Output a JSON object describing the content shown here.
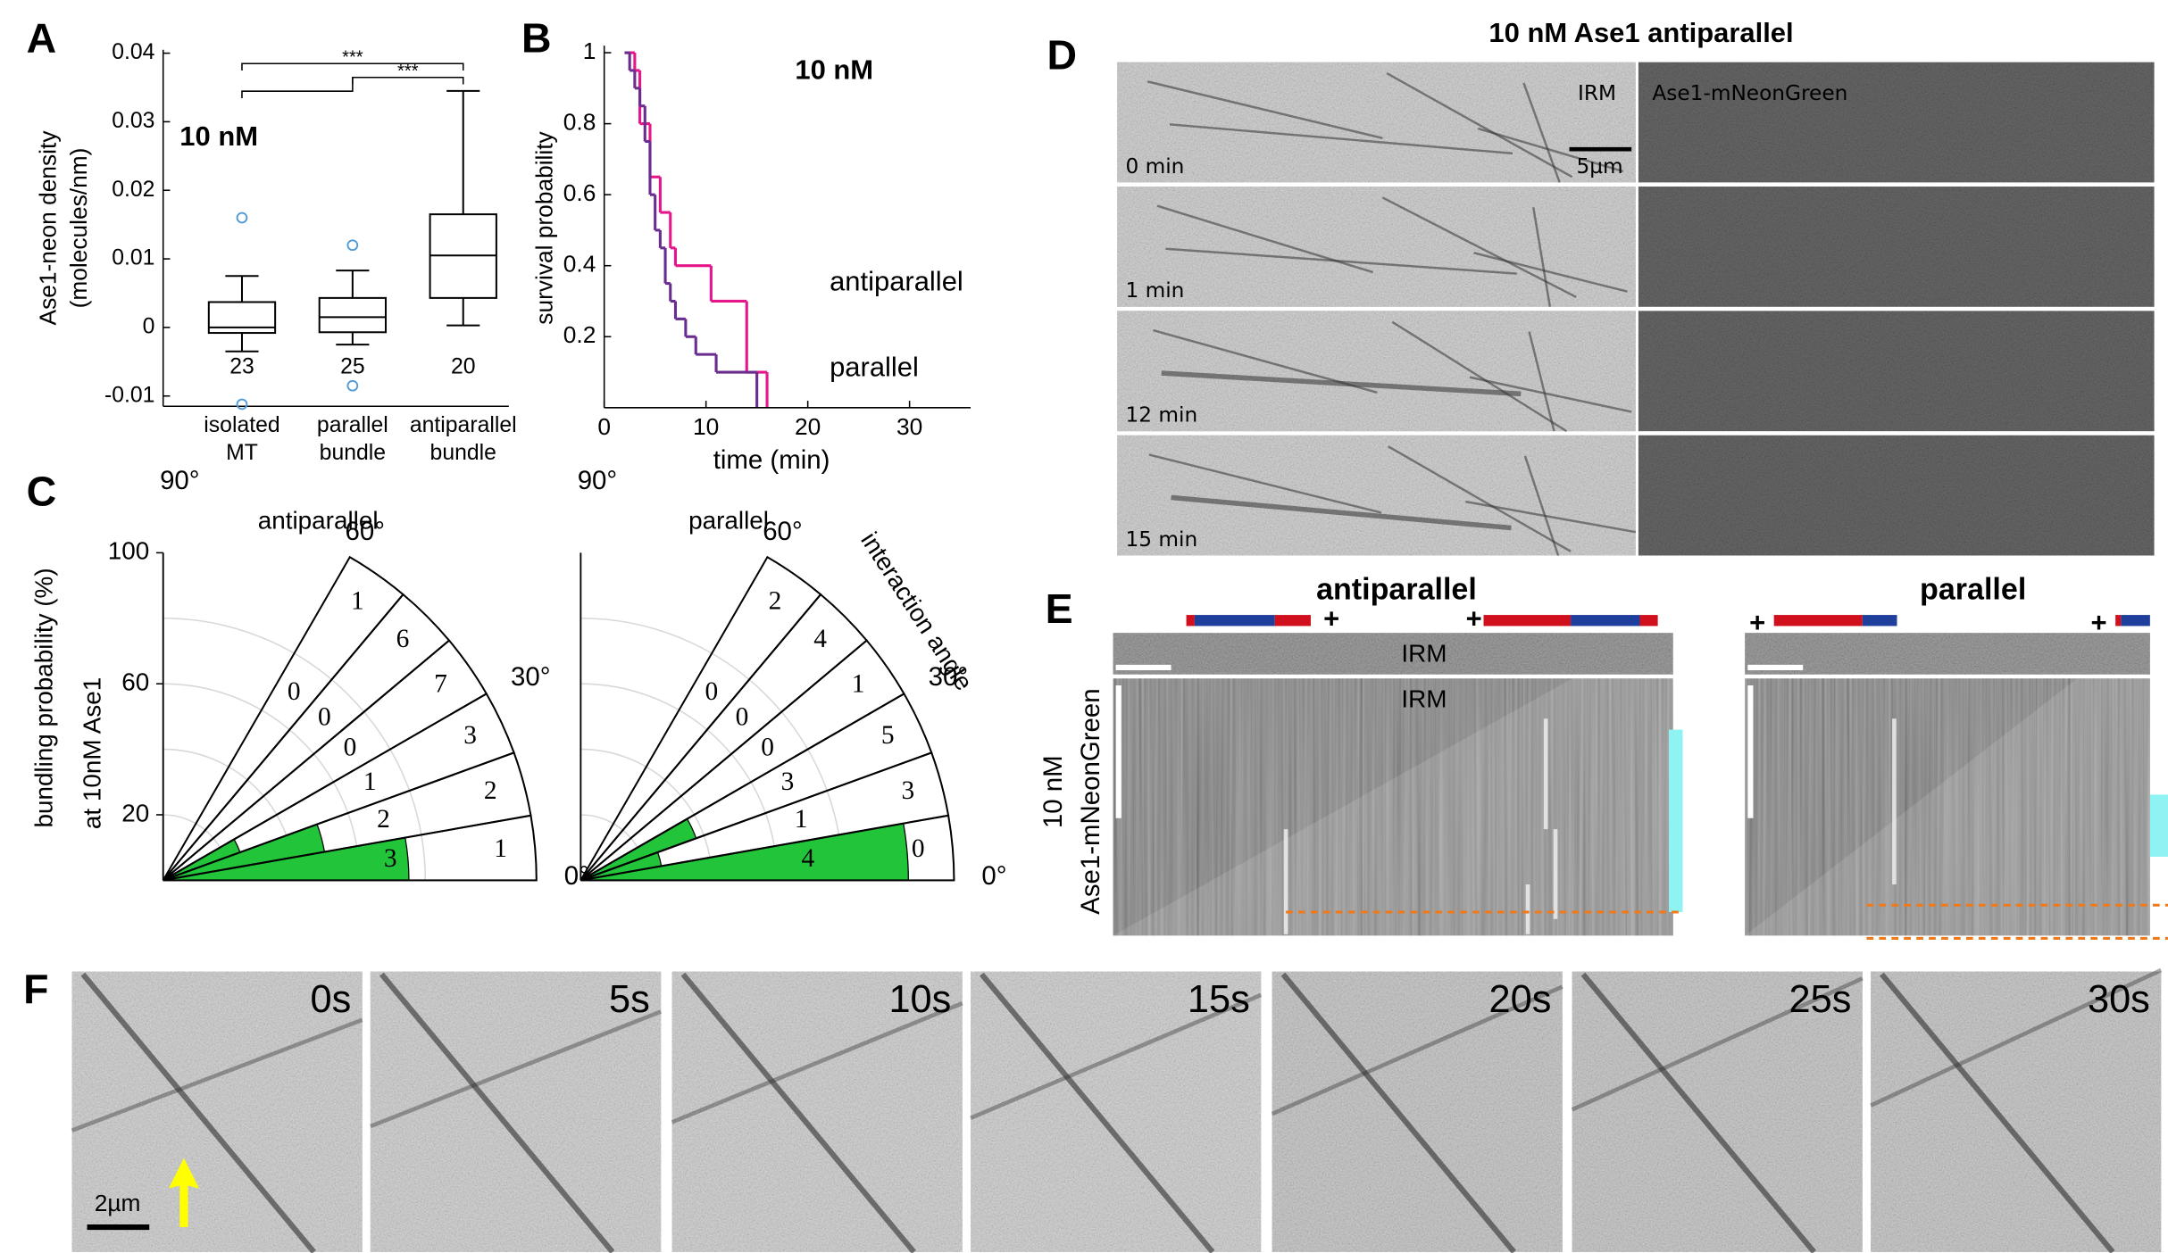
{
  "panel_labels": [
    "A",
    "B",
    "C",
    "D",
    "E",
    "F"
  ],
  "chart_data": [
    {
      "type": "box",
      "annotation": "10 nM",
      "y_label": [
        "Ase1-neon density",
        "(molecules/nm)"
      ],
      "categories": [
        [
          "isolated",
          "MT"
        ],
        [
          "parallel",
          "bundle"
        ],
        [
          "antiparallel",
          "bundle"
        ]
      ],
      "boxes": [
        {
          "min": -0.0035,
          "q1": -0.0008,
          "median": 0,
          "q3": 0.0037,
          "max": 0.0075,
          "outliers": [
            0.016,
            -0.0112
          ]
        },
        {
          "min": -0.0025,
          "q1": -0.0007,
          "median": 0.0015,
          "q3": 0.0043,
          "max": 0.0083,
          "outliers": [
            0.012,
            -0.0085
          ]
        },
        {
          "min": 0.0003,
          "q1": 0.0043,
          "median": 0.0105,
          "q3": 0.0165,
          "max": 0.0345,
          "outliers": []
        }
      ],
      "n_labels": [
        23,
        25,
        20
      ],
      "significance": [
        {
          "from": 0,
          "to": 2,
          "label": "***"
        },
        {
          "from": 1,
          "to": 2,
          "label": "***"
        }
      ],
      "ylim": [
        -0.0115,
        0.0405
      ],
      "yticks": [
        -0.01,
        0,
        0.01,
        0.02,
        0.03,
        0.04
      ]
    },
    {
      "type": "step",
      "annotation": "10 nM",
      "x_label": "time (min)",
      "y_label": "survival probability",
      "series": [
        {
          "name": "antiparallel",
          "color": "#e5158a",
          "x": [
            2,
            3,
            3.5,
            4.5,
            5.5,
            6.5,
            7,
            10.5,
            14,
            16
          ],
          "values": [
            1,
            0.95,
            0.8,
            0.65,
            0.55,
            0.45,
            0.4,
            0.3,
            0.1,
            0
          ]
        },
        {
          "name": "parallel",
          "color": "#6a2d8f",
          "x": [
            2,
            2.5,
            3,
            3.5,
            4,
            4.5,
            5,
            5.5,
            6,
            6.5,
            7,
            8,
            9,
            11,
            15
          ],
          "values": [
            1,
            0.95,
            0.9,
            0.85,
            0.75,
            0.6,
            0.5,
            0.45,
            0.35,
            0.3,
            0.25,
            0.2,
            0.15,
            0.1,
            0
          ]
        }
      ],
      "xlim": [
        0,
        36
      ],
      "xticks": [
        0,
        10,
        20,
        30
      ],
      "ylim": [
        0,
        1.02
      ],
      "yticks": [
        0.2,
        0.4,
        0.6,
        0.8,
        1
      ]
    },
    {
      "type": "polar",
      "title": "antiparallel",
      "y_label": [
        "bundling probability (%)",
        "at 10nM Ase1"
      ],
      "color": "#22c43a",
      "angles": [
        0,
        10,
        20,
        30,
        40,
        50,
        60
      ],
      "values": [
        75,
        50,
        25,
        0,
        0,
        0
      ],
      "bundled": [
        3,
        2,
        1,
        0,
        0,
        0
      ],
      "not_bundled": [
        1,
        2,
        3,
        7,
        6,
        1
      ],
      "rlim": [
        0,
        100
      ],
      "rticks": [
        20,
        60,
        100
      ],
      "rgrid": [
        20,
        40,
        60,
        80
      ],
      "angle_ticks": [
        {
          "value": 0,
          "label": "0°"
        },
        {
          "value": 30,
          "label": "30°"
        },
        {
          "value": 60,
          "label": "60°"
        },
        {
          "value": 90,
          "label": "90°"
        }
      ]
    },
    {
      "type": "polar",
      "title": "parallel",
      "annotation": "interaction angle",
      "color": "#22c43a",
      "angles": [
        0,
        10,
        20,
        30,
        40,
        50,
        60
      ],
      "values": [
        100,
        25,
        37.5,
        0,
        0,
        0
      ],
      "bundled": [
        4,
        1,
        3,
        0,
        0,
        0
      ],
      "not_bundled": [
        0,
        3,
        5,
        1,
        4,
        2
      ],
      "rlim": [
        0,
        100
      ],
      "rgrid": [
        20,
        40,
        60,
        80
      ],
      "angle_ticks": [
        {
          "value": 0,
          "label": "0°"
        },
        {
          "value": 30,
          "label": "30°"
        },
        {
          "value": 60,
          "label": "60°"
        },
        {
          "value": 90,
          "label": "90°"
        }
      ]
    }
  ],
  "panel_d": {
    "title": "10 nM Ase1 antiparallel",
    "channels": [
      "IRM",
      "Ase1-mNeonGreen"
    ],
    "times": [
      "0 min",
      "1 min",
      "12 min",
      "15 min"
    ],
    "scale_bar": "5µm"
  },
  "panel_e": {
    "titles": [
      "antiparallel",
      "parallel"
    ],
    "channel_labels": [
      "IRM",
      "IRM"
    ],
    "y_label": [
      "10 nM",
      "Ase1-mNeonGreen"
    ],
    "plus": [
      "+",
      "+",
      "+",
      "+"
    ]
  },
  "panel_f": {
    "times": [
      "0s",
      "5s",
      "10s",
      "15s",
      "20s",
      "25s",
      "30s"
    ],
    "scale_bar": "2µm"
  }
}
